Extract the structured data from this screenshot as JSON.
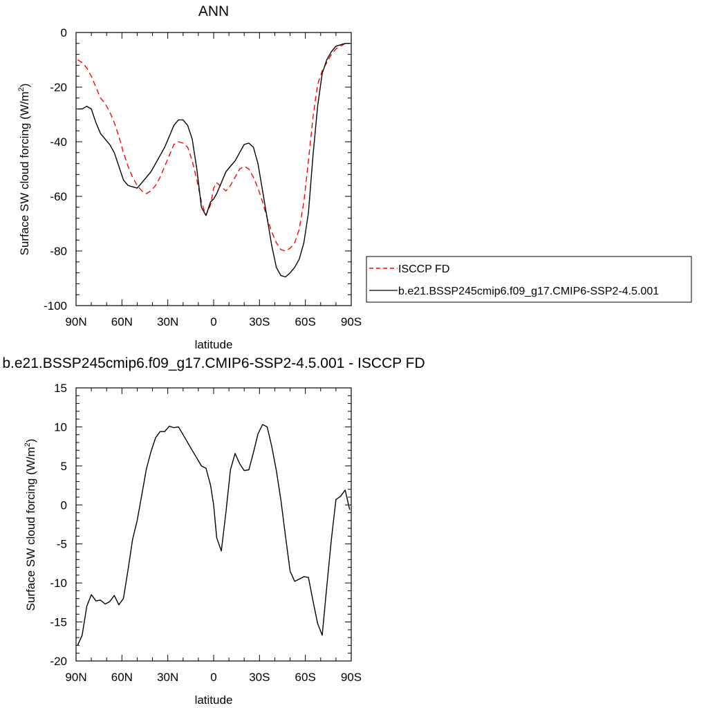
{
  "chart_data": [
    {
      "type": "line",
      "title": "ANN",
      "xlabel": "latitude",
      "ylabel": "Surface SW cloud forcing (W/m",
      "ylabel_sup": "2",
      "ylabel_close": ")",
      "xlim": [
        90,
        -90
      ],
      "ylim": [
        -100,
        0
      ],
      "xticks": [
        90,
        60,
        30,
        0,
        -30,
        -60,
        -90
      ],
      "xtick_labels": [
        "90N",
        "60N",
        "30N",
        "0",
        "30S",
        "60S",
        "90S"
      ],
      "yticks": [
        0,
        -20,
        -40,
        -60,
        -80,
        -100
      ],
      "ytick_labels": [
        "0",
        "-20",
        "-40",
        "-60",
        "-80",
        "-100"
      ],
      "grid": false,
      "legend_position": "right",
      "series": [
        {
          "name": "ISCCP FD",
          "color": "#ff0000",
          "dash": "dashed",
          "x": [
            89,
            86,
            83,
            80,
            77,
            74,
            71,
            68,
            65,
            62,
            59,
            56,
            53,
            50,
            47,
            44,
            41,
            38,
            35,
            32,
            29,
            26,
            23,
            20,
            17,
            14,
            11,
            8,
            5,
            2,
            0,
            -2,
            -5,
            -8,
            -11,
            -14,
            -17,
            -20,
            -23,
            -26,
            -29,
            -32,
            -35,
            -38,
            -41,
            -44,
            -47,
            -50,
            -53,
            -56,
            -59,
            -62,
            -65,
            -68,
            -71,
            -74,
            -77,
            -80,
            -83,
            -86,
            -89
          ],
          "y": [
            -10,
            -11,
            -13,
            -16,
            -20,
            -24,
            -26,
            -29,
            -33,
            -38,
            -44,
            -49,
            -53,
            -56,
            -58,
            -59,
            -58,
            -56,
            -53,
            -49,
            -45,
            -41,
            -40,
            -40.5,
            -42,
            -47,
            -54,
            -62,
            -67,
            -63,
            -57,
            -55,
            -56.5,
            -58,
            -56,
            -53,
            -50,
            -49,
            -50,
            -53,
            -57,
            -62,
            -68,
            -73,
            -77,
            -79.5,
            -80,
            -79,
            -77,
            -72,
            -62,
            -47,
            -31,
            -19,
            -14,
            -11,
            -8,
            -6,
            -5,
            -4,
            -4
          ]
        },
        {
          "name": "b.e21.BSSP245cmip6.f09_g17.CMIP6-SSP2-4.5.001",
          "color": "#000000",
          "dash": "solid",
          "x": [
            89,
            86,
            83,
            80,
            77,
            74,
            71,
            68,
            65,
            62,
            59,
            56,
            53,
            50,
            47,
            44,
            41,
            38,
            35,
            32,
            29,
            26,
            23,
            20,
            17,
            14,
            11,
            8,
            5,
            2,
            0,
            -2,
            -5,
            -8,
            -11,
            -14,
            -17,
            -20,
            -23,
            -26,
            -29,
            -32,
            -35,
            -38,
            -41,
            -44,
            -47,
            -50,
            -53,
            -56,
            -59,
            -62,
            -65,
            -68,
            -71,
            -74,
            -77,
            -80,
            -83,
            -86,
            -89
          ],
          "y": [
            -28,
            -28,
            -27,
            -28,
            -33,
            -37,
            -39,
            -41,
            -44,
            -49,
            -54,
            -56,
            -56.5,
            -57,
            -55,
            -53,
            -51,
            -48,
            -45,
            -42,
            -38,
            -34,
            -32,
            -32,
            -34,
            -39,
            -50,
            -64,
            -67,
            -62,
            -61,
            -59,
            -55,
            -51,
            -49,
            -47,
            -44,
            -41,
            -40.5,
            -42,
            -48,
            -58,
            -68,
            -78,
            -86,
            -89,
            -89.5,
            -88,
            -86,
            -83,
            -77,
            -66,
            -45,
            -27,
            -15,
            -10,
            -7,
            -5,
            -4.5,
            -4,
            -4
          ]
        }
      ]
    },
    {
      "type": "line",
      "title": "b.e21.BSSP245cmip6.f09_g17.CMIP6-SSP2-4.5.001 - ISCCP FD",
      "xlabel": "latitude",
      "ylabel": "Surface SW cloud forcing (W/m",
      "ylabel_sup": "2",
      "ylabel_close": ")",
      "xlim": [
        90,
        -90
      ],
      "ylim": [
        -20,
        15
      ],
      "xticks": [
        90,
        60,
        30,
        0,
        -30,
        -60,
        -90
      ],
      "xtick_labels": [
        "90N",
        "60N",
        "30N",
        "0",
        "30S",
        "60S",
        "90S"
      ],
      "yticks": [
        15,
        10,
        5,
        0,
        -5,
        -10,
        -15,
        -20
      ],
      "ytick_labels": [
        "15",
        "10",
        "5",
        "0",
        "-5",
        "-10",
        "-15",
        "-20"
      ],
      "grid": false,
      "series": [
        {
          "color": "#000000",
          "dash": "solid",
          "x": [
            89,
            86,
            83,
            80,
            77,
            74,
            71,
            68,
            65,
            62,
            59,
            56,
            53,
            50,
            47,
            44,
            41,
            38,
            35,
            32,
            29,
            26,
            23,
            20,
            17,
            14,
            11,
            8,
            5,
            2,
            0,
            -2,
            -5,
            -8,
            -11,
            -14,
            -17,
            -20,
            -23,
            -26,
            -29,
            -32,
            -35,
            -38,
            -41,
            -44,
            -47,
            -50,
            -53,
            -56,
            -59,
            -62,
            -65,
            -68,
            -71,
            -74,
            -77,
            -80,
            -83,
            -86,
            -89
          ],
          "y": [
            -18,
            -16.7,
            -13,
            -11.5,
            -12.3,
            -12.2,
            -12.7,
            -12.4,
            -11.6,
            -12.8,
            -12,
            -8.3,
            -4.4,
            -2,
            1.3,
            4.6,
            6.8,
            8.6,
            9.4,
            9.4,
            10.1,
            9.9,
            10,
            9,
            8,
            7,
            6,
            5,
            4.7,
            2.5,
            0,
            -4.2,
            -5.9,
            -1,
            4.5,
            6.6,
            5.3,
            4.4,
            4.5,
            6.7,
            9.1,
            10.3,
            10,
            7.5,
            4.4,
            0.6,
            -4,
            -8.5,
            -9.8,
            -9.5,
            -9.2,
            -9.3,
            -12.3,
            -15.2,
            -16.7,
            -10.5,
            -4.4,
            0.7,
            1.1,
            1.9,
            -0.6
          ]
        }
      ]
    }
  ]
}
